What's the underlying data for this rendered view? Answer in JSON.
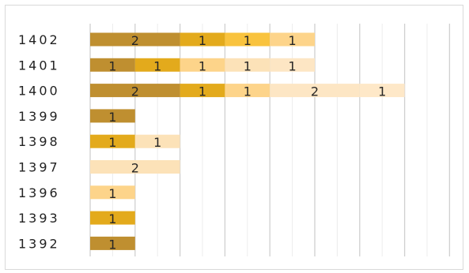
{
  "chart_data": {
    "type": "bar",
    "orientation": "horizontal",
    "stacked": true,
    "legend": "none",
    "grid": true,
    "xlim": [
      0,
      8
    ],
    "categories": [
      "1402",
      "1401",
      "1400",
      "1399",
      "1398",
      "1397",
      "1396",
      "1393",
      "1392"
    ],
    "series": [
      {
        "color": "#bf8f30",
        "values": [
          2,
          1,
          2,
          1,
          0,
          0,
          0,
          0,
          1
        ]
      },
      {
        "color": "#e3aa1c",
        "values": [
          1,
          1,
          1,
          0,
          1,
          0,
          0,
          1,
          0
        ]
      },
      {
        "color": "#f9c33e",
        "values": [
          1,
          0,
          0,
          0,
          0,
          0,
          0,
          0,
          0
        ]
      },
      {
        "color": "#fdd48a",
        "values": [
          1,
          1,
          1,
          0,
          0,
          0,
          1,
          0,
          0
        ]
      },
      {
        "color": "#fce2b8",
        "values": [
          0,
          1,
          0,
          0,
          1,
          2,
          0,
          0,
          0
        ]
      },
      {
        "color": "#fde6c4",
        "values": [
          0,
          1,
          2,
          0,
          0,
          0,
          0,
          0,
          0
        ]
      },
      {
        "color": "#fee8c8",
        "values": [
          0,
          0,
          1,
          0,
          0,
          0,
          0,
          0,
          0
        ]
      }
    ]
  }
}
